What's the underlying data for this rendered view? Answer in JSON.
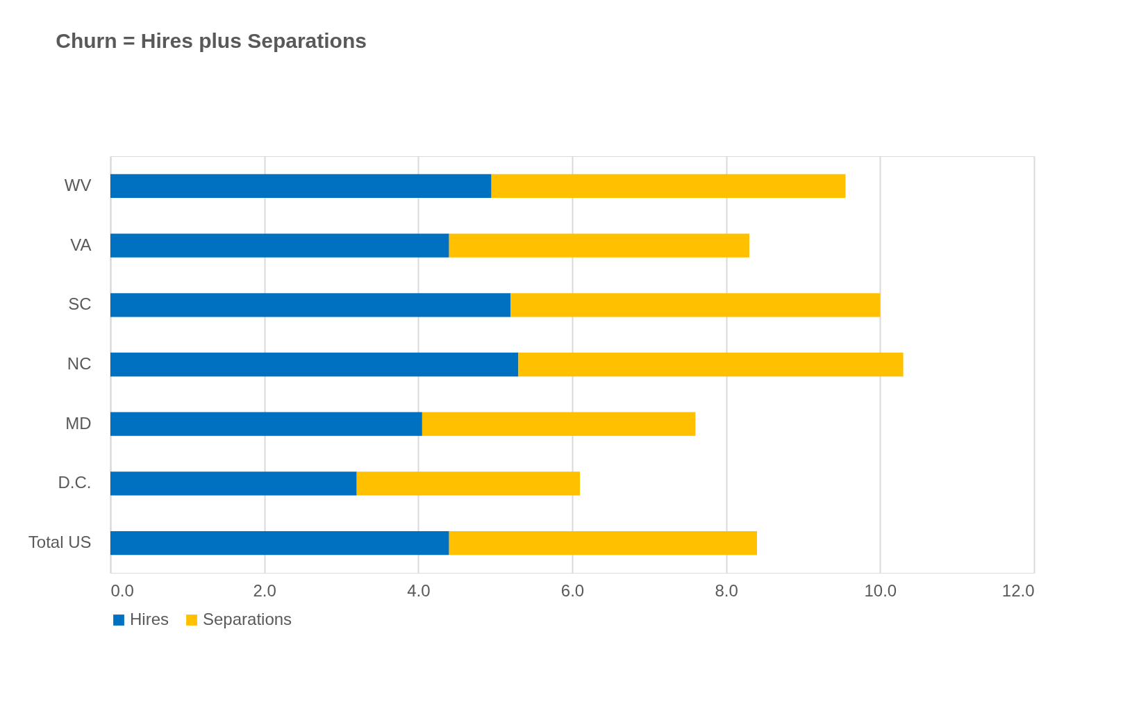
{
  "chart_data": {
    "type": "bar",
    "orientation": "horizontal",
    "stacked": true,
    "title": "Churn = Hires plus Separations",
    "categories": [
      "WV",
      "VA",
      "SC",
      "NC",
      "MD",
      "D.C.",
      "Total US"
    ],
    "series": [
      {
        "name": "Hires",
        "color": "#0070c0",
        "values": [
          4.95,
          4.4,
          5.2,
          5.3,
          4.05,
          3.2,
          4.4
        ]
      },
      {
        "name": "Separations",
        "color": "#ffc000",
        "values": [
          4.6,
          3.9,
          4.8,
          5.0,
          3.55,
          2.9,
          4.0
        ]
      }
    ],
    "xlim": [
      0,
      12
    ],
    "xticks": [
      {
        "value": 0,
        "label": "0.0"
      },
      {
        "value": 2,
        "label": "2.0"
      },
      {
        "value": 4,
        "label": "4.0"
      },
      {
        "value": 6,
        "label": "6.0"
      },
      {
        "value": 8,
        "label": "8.0"
      },
      {
        "value": 10,
        "label": "10.0"
      },
      {
        "value": 12,
        "label": "12.0"
      }
    ],
    "grid": "x",
    "legend": "bottom"
  }
}
